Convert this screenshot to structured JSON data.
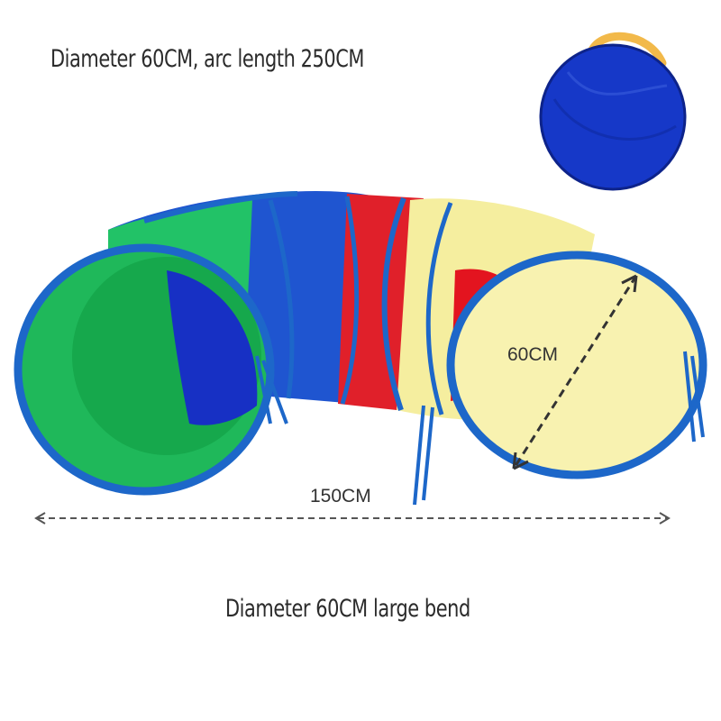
{
  "captions": {
    "top": "Diameter 60CM, arc length 250CM",
    "bottom": "Diameter 60CM large bend"
  },
  "dimensions": {
    "width_label": "150CM",
    "diameter_label": "60CM"
  },
  "colors": {
    "green": "#1fbf5a",
    "blue": "#1a3fd0",
    "red": "#e0202a",
    "yellow": "#f6f0a8",
    "rim": "#1d67c9",
    "handle": "#f2b94a"
  },
  "icons": {
    "product": "play-tunnel-image",
    "bag": "storage-bag-image"
  }
}
